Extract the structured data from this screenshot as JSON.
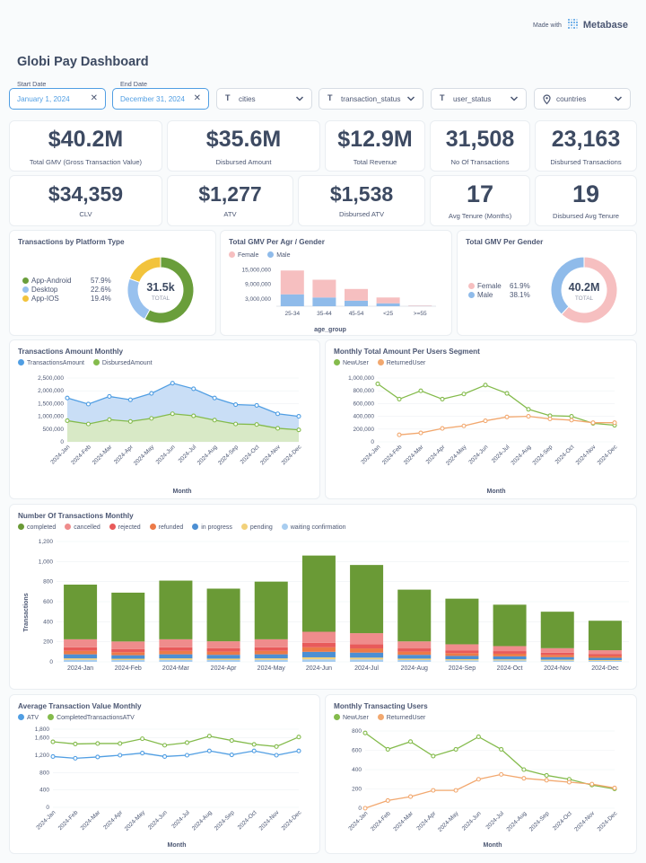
{
  "branding": {
    "made_with": "Made with",
    "brand": "Metabase"
  },
  "dashboard": {
    "title": "Globi Pay Dashboard"
  },
  "filters": {
    "start_date": {
      "label": "Start Date",
      "value": "January 1, 2024"
    },
    "end_date": {
      "label": "End Date",
      "value": "December 31, 2024"
    },
    "cities": "cities",
    "transaction_status": "transaction_status",
    "user_status": "user_status",
    "countries": "countries"
  },
  "kpis": [
    {
      "value": "$40.2M",
      "label": "Total GMV (Gross Transaction Value)"
    },
    {
      "value": "$35.6M",
      "label": "Disbursed Amount"
    },
    {
      "value": "$12.9M",
      "label": "Total Revenue"
    },
    {
      "value": "31,508",
      "label": "No Of Transactions"
    },
    {
      "value": "23,163",
      "label": "Disbursed Transactions"
    },
    {
      "value": "$34,359",
      "label": "CLV"
    },
    {
      "value": "$1,277",
      "label": "ATV"
    },
    {
      "value": "$1,538",
      "label": "Disbursed ATV"
    },
    {
      "value": "17",
      "label": "Avg Tenure (Months)"
    },
    {
      "value": "19",
      "label": "Disbursed Avg Tenure"
    }
  ],
  "colors": {
    "android": "#6a9e3b",
    "desktop": "#98c1ee",
    "ios": "#f2c33c",
    "female": "#f6bfc0",
    "male": "#8fbbea",
    "blue": "#509ee3",
    "green": "#84bb4c",
    "orange": "#f2a86f",
    "completed": "#6a9a36",
    "cancelled": "#ef8c8c",
    "rejected": "#e85a5a",
    "refunded": "#ec7a48",
    "in_progress": "#4c8fd3",
    "pending": "#f2d17a",
    "waiting": "#a8cdf0"
  },
  "chart_data": [
    {
      "id": "platform",
      "type": "pie",
      "title": "Transactions by Platform Type",
      "center_value": "31.5k",
      "center_label": "TOTAL",
      "slices": [
        {
          "name": "App-Android",
          "pct": "57.9%",
          "value": 57.9
        },
        {
          "name": "Desktop",
          "pct": "22.6%",
          "value": 22.6
        },
        {
          "name": "App-IOS",
          "pct": "19.4%",
          "value": 19.4
        }
      ]
    },
    {
      "id": "age_gender",
      "type": "bar",
      "title": "Total GMV Per Agr / Gender",
      "xlabel": "age_group",
      "categories": [
        "25-34",
        "35-44",
        "45-54",
        "<25",
        ">=55"
      ],
      "series": [
        {
          "name": "Female",
          "values": [
            9800000,
            7300000,
            4800000,
            2400000,
            200000
          ]
        },
        {
          "name": "Male",
          "values": [
            4900000,
            3600000,
            2300000,
            1200000,
            100000
          ]
        }
      ],
      "yticks": [
        "15,000,000",
        "9,000,000",
        "3,000,000"
      ],
      "ytick_values": [
        15000000,
        9000000,
        3000000
      ],
      "ylim": [
        0,
        17000000
      ]
    },
    {
      "id": "gender",
      "type": "pie",
      "title": "Total GMV Per Gender",
      "center_value": "40.2M",
      "center_label": "TOTAL",
      "slices": [
        {
          "name": "Female",
          "pct": "61.9%",
          "value": 61.9
        },
        {
          "name": "Male",
          "pct": "38.1%",
          "value": 38.1
        }
      ]
    },
    {
      "id": "amount_monthly",
      "type": "area",
      "title": "Transactions Amount Monthly",
      "xlabel": "Month",
      "categories": [
        "2024-Jan",
        "2024-Feb",
        "2024-Mar",
        "2024-Apr",
        "2024-May",
        "2024-Jun",
        "2024-Jul",
        "2024-Aug",
        "2024-Sep",
        "2024-Oct",
        "2024-Nov",
        "2024-Dec"
      ],
      "series": [
        {
          "name": "TransactionsAmount",
          "values": [
            1720000,
            1480000,
            1780000,
            1650000,
            1900000,
            2300000,
            2080000,
            1720000,
            1460000,
            1430000,
            1100000,
            1000000
          ]
        },
        {
          "name": "DisbursedAmount",
          "values": [
            830000,
            700000,
            870000,
            800000,
            920000,
            1100000,
            1020000,
            850000,
            700000,
            680000,
            530000,
            470000
          ]
        }
      ],
      "yticks": [
        "2,500,000",
        "2,000,000",
        "1,500,000",
        "1,000,000",
        "500,000",
        "0"
      ],
      "ylim": [
        0,
        2500000
      ]
    },
    {
      "id": "segment_monthly",
      "type": "line",
      "title": "Monthly Total Amount Per Users Segment",
      "xlabel": "Month",
      "categories": [
        "2024-Jan",
        "2024-Feb",
        "2024-Mar",
        "2024-Apr",
        "2024-May",
        "2024-Jun",
        "2024-Jul",
        "2024-Aug",
        "2024-Sep",
        "2024-Oct",
        "2024-Nov",
        "2024-Dec"
      ],
      "series": [
        {
          "name": "NewUser",
          "values": [
            910000,
            670000,
            800000,
            670000,
            750000,
            890000,
            760000,
            510000,
            410000,
            400000,
            290000,
            260000
          ]
        },
        {
          "name": "ReturnedUser",
          "values": [
            null,
            110000,
            140000,
            210000,
            250000,
            330000,
            390000,
            400000,
            360000,
            340000,
            300000,
            300000
          ]
        }
      ],
      "yticks": [
        "1,000,000",
        "800,000",
        "600,000",
        "400,000",
        "200,000",
        "0"
      ],
      "ylim": [
        0,
        1000000
      ]
    },
    {
      "id": "tx_count_monthly",
      "type": "bar",
      "stacked": true,
      "title": "Number Of Transactions Monthly",
      "xlabel": "Month",
      "ylabel": "Transactions",
      "categories": [
        "2024-Jan",
        "2024-Feb",
        "2024-Mar",
        "2024-Apr",
        "2024-May",
        "2024-Jun",
        "2024-Jul",
        "2024-Aug",
        "2024-Sep",
        "2024-Oct",
        "2024-Nov",
        "2024-Dec"
      ],
      "series": [
        {
          "name": "waiting confirmation",
          "values": [
            20,
            18,
            20,
            18,
            20,
            25,
            24,
            18,
            15,
            14,
            12,
            10
          ]
        },
        {
          "name": "pending",
          "values": [
            15,
            13,
            15,
            14,
            15,
            20,
            18,
            14,
            12,
            11,
            10,
            8
          ]
        },
        {
          "name": "in progress",
          "values": [
            40,
            35,
            40,
            38,
            40,
            55,
            50,
            38,
            32,
            30,
            25,
            22
          ]
        },
        {
          "name": "refunded",
          "values": [
            35,
            30,
            35,
            32,
            35,
            45,
            42,
            32,
            28,
            26,
            22,
            18
          ]
        },
        {
          "name": "rejected",
          "values": [
            35,
            32,
            35,
            33,
            35,
            45,
            42,
            32,
            28,
            26,
            22,
            18
          ]
        },
        {
          "name": "cancelled",
          "values": [
            80,
            75,
            80,
            70,
            80,
            110,
            110,
            70,
            60,
            50,
            45,
            40
          ]
        },
        {
          "name": "completed",
          "values": [
            545,
            487,
            585,
            525,
            575,
            760,
            680,
            516,
            455,
            413,
            364,
            294
          ]
        }
      ],
      "yticks": [
        "1,200",
        "1,000",
        "800",
        "600",
        "400",
        "200",
        "0"
      ],
      "ylim": [
        0,
        1200
      ]
    },
    {
      "id": "atv_monthly",
      "type": "line",
      "title": "Average Transaction Value Monthly",
      "xlabel": "Month",
      "categories": [
        "2024-Jan",
        "2024-Feb",
        "2024-Mar",
        "2024-Apr",
        "2024-May",
        "2024-Jun",
        "2024-Jul",
        "2024-Aug",
        "2024-Sep",
        "2024-Oct",
        "2024-Nov",
        "2024-Dec"
      ],
      "series": [
        {
          "name": "ATV",
          "values": [
            1170,
            1130,
            1160,
            1200,
            1250,
            1170,
            1200,
            1300,
            1210,
            1300,
            1200,
            1300
          ]
        },
        {
          "name": "CompletedTransactionsATV",
          "values": [
            1510,
            1460,
            1470,
            1470,
            1580,
            1430,
            1490,
            1640,
            1540,
            1450,
            1400,
            1620
          ]
        }
      ],
      "yticks": [
        "1,800",
        "1,600",
        "1,200",
        "800",
        "400",
        "0"
      ],
      "ytick_values": [
        1800,
        1600,
        1200,
        800,
        400,
        0
      ],
      "ylim": [
        0,
        1800
      ]
    },
    {
      "id": "users_monthly",
      "type": "line",
      "title": "Monthly Transacting Users",
      "xlabel": "Month",
      "categories": [
        "2024-Jan",
        "2024-Feb",
        "2024-Mar",
        "2024-Apr",
        "2024-May",
        "2024-Jun",
        "2024-Jul",
        "2024-Aug",
        "2024-Sep",
        "2024-Oct",
        "2024-Nov",
        "2024-Dec"
      ],
      "series": [
        {
          "name": "NewUser",
          "values": [
            780,
            610,
            690,
            540,
            610,
            740,
            610,
            400,
            340,
            300,
            240,
            200
          ]
        },
        {
          "name": "ReturnedUser",
          "values": [
            0,
            80,
            120,
            185,
            185,
            300,
            350,
            310,
            290,
            270,
            250,
            210
          ]
        }
      ],
      "yticks": [
        "800",
        "600",
        "400",
        "200",
        "0"
      ],
      "ylim": [
        0,
        800
      ]
    }
  ]
}
